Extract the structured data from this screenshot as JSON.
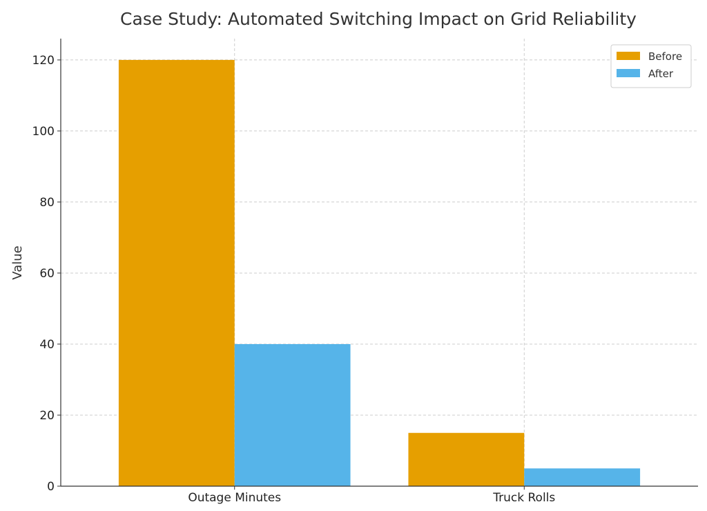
{
  "chart_data": {
    "type": "bar",
    "title": "Case Study: Automated Switching Impact on Grid Reliability",
    "xlabel": "",
    "ylabel": "Value",
    "categories": [
      "Outage Minutes",
      "Truck Rolls"
    ],
    "series": [
      {
        "name": "Before",
        "values": [
          120,
          15
        ],
        "color": "#E69F00"
      },
      {
        "name": "After",
        "values": [
          40,
          5
        ],
        "color": "#56B4E9"
      }
    ],
    "ylim": [
      0,
      126
    ],
    "yticks": [
      0,
      20,
      40,
      60,
      80,
      100,
      120
    ],
    "grid": true,
    "legend_position": "top-right"
  }
}
